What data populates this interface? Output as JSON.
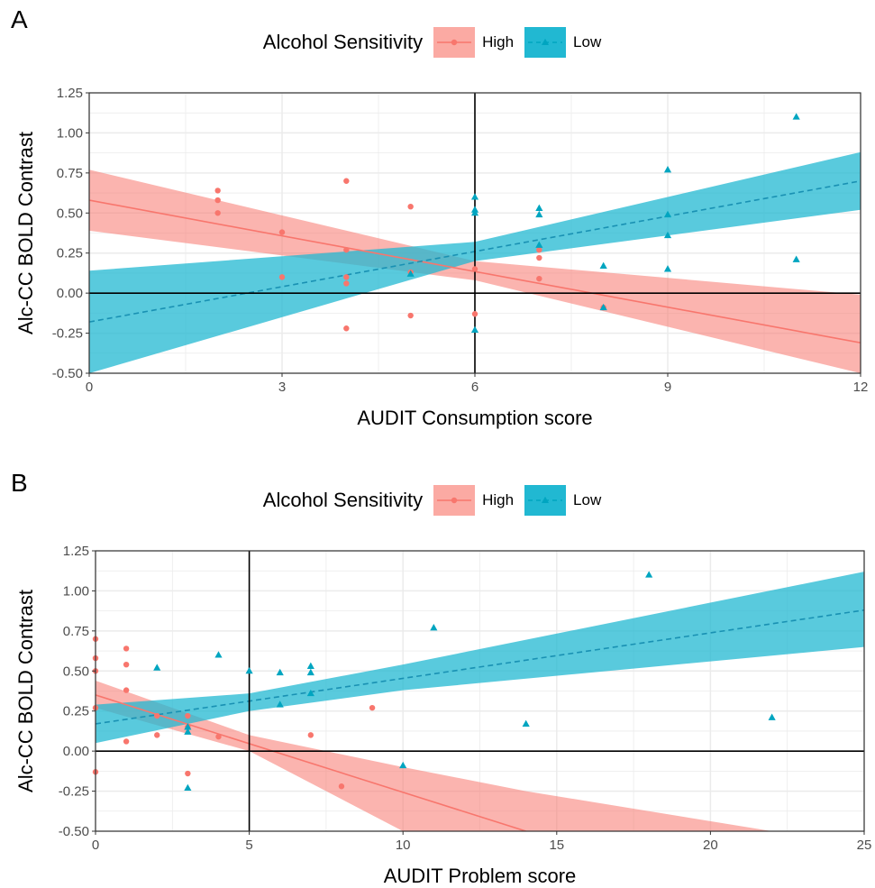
{
  "colors": {
    "high": "#f8766d",
    "low": "#00a5c0",
    "low_band": "#21b8d2",
    "high_band": "#fbaaa3",
    "grid": "#ebebeb",
    "axis": "#000000"
  },
  "chart_data": [
    {
      "type": "scatter",
      "panel_label": "A",
      "xlabel": "AUDIT Consumption score",
      "ylabel": "Alc-CC BOLD Contrast",
      "xlim": [
        0,
        12
      ],
      "ylim": [
        -0.5,
        1.25
      ],
      "x_ticks": [
        0,
        3,
        6,
        9,
        12
      ],
      "x_tick_labels": [
        "0",
        "3",
        "6",
        "9",
        "12"
      ],
      "y_ticks": [
        -0.5,
        -0.25,
        0,
        0.25,
        0.5,
        0.75,
        1,
        1.25
      ],
      "y_tick_labels": [
        "-0.50",
        "-0.25",
        "0.00",
        "0.25",
        "0.50",
        "0.75",
        "1.00",
        "1.25"
      ],
      "vline": 6,
      "hline": 0,
      "grid": true,
      "legend": {
        "title": "Alcohol Sensitivity",
        "position": "top"
      },
      "series": [
        {
          "name": "High",
          "marker": "circle",
          "line": "solid",
          "points": [
            [
              2,
              0.64
            ],
            [
              2,
              0.58
            ],
            [
              2,
              0.5
            ],
            [
              3,
              0.38
            ],
            [
              3,
              0.1
            ],
            [
              4,
              0.7
            ],
            [
              4,
              0.27
            ],
            [
              4,
              0.1
            ],
            [
              4,
              0.06
            ],
            [
              4,
              -0.22
            ],
            [
              5,
              0.54
            ],
            [
              5,
              0.13
            ],
            [
              5,
              -0.14
            ],
            [
              6,
              0.15
            ],
            [
              6,
              -0.13
            ],
            [
              7,
              0.27
            ],
            [
              7,
              0.22
            ],
            [
              7,
              0.09
            ],
            [
              8,
              -0.09
            ]
          ],
          "fit": {
            "x": [
              0,
              12
            ],
            "y": [
              0.58,
              -0.31
            ]
          },
          "band": {
            "x": [
              0,
              6,
              12
            ],
            "lower": [
              0.39,
              0.08,
              -0.5
            ],
            "upper": [
              0.77,
              0.2,
              -0.01
            ]
          }
        },
        {
          "name": "Low",
          "marker": "triangle",
          "line": "dashed",
          "points": [
            [
              5,
              0.12
            ],
            [
              6,
              0.6
            ],
            [
              6,
              0.52
            ],
            [
              6,
              0.5
            ],
            [
              6,
              -0.23
            ],
            [
              7,
              0.53
            ],
            [
              7,
              0.49
            ],
            [
              7,
              0.3
            ],
            [
              8,
              0.17
            ],
            [
              8,
              -0.09
            ],
            [
              9,
              0.77
            ],
            [
              9,
              0.49
            ],
            [
              9,
              0.36
            ],
            [
              9,
              0.15
            ],
            [
              11,
              1.1
            ],
            [
              11,
              0.21
            ]
          ],
          "fit": {
            "x": [
              0,
              12
            ],
            "y": [
              -0.18,
              0.7
            ]
          },
          "band": {
            "x": [
              0,
              6,
              12
            ],
            "lower": [
              -0.5,
              0.2,
              0.52
            ],
            "upper": [
              0.14,
              0.32,
              0.88
            ]
          }
        }
      ]
    },
    {
      "type": "scatter",
      "panel_label": "B",
      "xlabel": "AUDIT Problem score",
      "ylabel": "Alc-CC BOLD Contrast",
      "xlim": [
        0,
        25
      ],
      "ylim": [
        -0.5,
        1.25
      ],
      "x_ticks": [
        0,
        5,
        10,
        15,
        20,
        25
      ],
      "x_tick_labels": [
        "0",
        "5",
        "10",
        "15",
        "20",
        "25"
      ],
      "y_ticks": [
        -0.5,
        -0.25,
        0,
        0.25,
        0.5,
        0.75,
        1,
        1.25
      ],
      "y_tick_labels": [
        "-0.50",
        "-0.25",
        "0.00",
        "0.25",
        "0.50",
        "0.75",
        "1.00",
        "1.25"
      ],
      "vline": 5,
      "hline": 0,
      "grid": true,
      "legend": {
        "title": "Alcohol Sensitivity",
        "position": "top"
      },
      "series": [
        {
          "name": "High",
          "marker": "circle",
          "line": "solid",
          "points": [
            [
              0,
              0.7
            ],
            [
              0,
              0.58
            ],
            [
              0,
              0.5
            ],
            [
              0,
              0.27
            ],
            [
              0,
              -0.13
            ],
            [
              1,
              0.64
            ],
            [
              1,
              0.54
            ],
            [
              1,
              0.38
            ],
            [
              1,
              0.06
            ],
            [
              2,
              0.22
            ],
            [
              2,
              0.1
            ],
            [
              3,
              0.22
            ],
            [
              3,
              0.15
            ],
            [
              3,
              -0.14
            ],
            [
              4,
              0.09
            ],
            [
              7,
              0.1
            ],
            [
              8,
              -0.22
            ],
            [
              9,
              0.27
            ]
          ],
          "fit": {
            "x": [
              0,
              14
            ],
            "y": [
              0.35,
              -0.5
            ]
          },
          "band": {
            "x": [
              0,
              5,
              10,
              14,
              22
            ],
            "lower": [
              0.27,
              0.0,
              -0.5,
              -0.5,
              -0.5
            ],
            "upper": [
              0.44,
              0.1,
              -0.1,
              -0.25,
              -0.5
            ]
          }
        },
        {
          "name": "Low",
          "marker": "triangle",
          "line": "dashed",
          "points": [
            [
              2,
              0.52
            ],
            [
              3,
              0.15
            ],
            [
              3,
              0.12
            ],
            [
              3,
              -0.23
            ],
            [
              4,
              0.6
            ],
            [
              5,
              0.5
            ],
            [
              6,
              0.49
            ],
            [
              6,
              0.29
            ],
            [
              7,
              0.53
            ],
            [
              7,
              0.49
            ],
            [
              7,
              0.36
            ],
            [
              10,
              -0.09
            ],
            [
              11,
              0.77
            ],
            [
              14,
              0.17
            ],
            [
              18,
              1.1
            ],
            [
              22,
              0.21
            ]
          ],
          "fit": {
            "x": [
              0,
              25
            ],
            "y": [
              0.17,
              0.88
            ]
          },
          "band": {
            "x": [
              0,
              5,
              10,
              25
            ],
            "lower": [
              0.05,
              0.25,
              0.38,
              0.65
            ],
            "upper": [
              0.29,
              0.36,
              0.54,
              1.12
            ]
          }
        }
      ]
    }
  ]
}
